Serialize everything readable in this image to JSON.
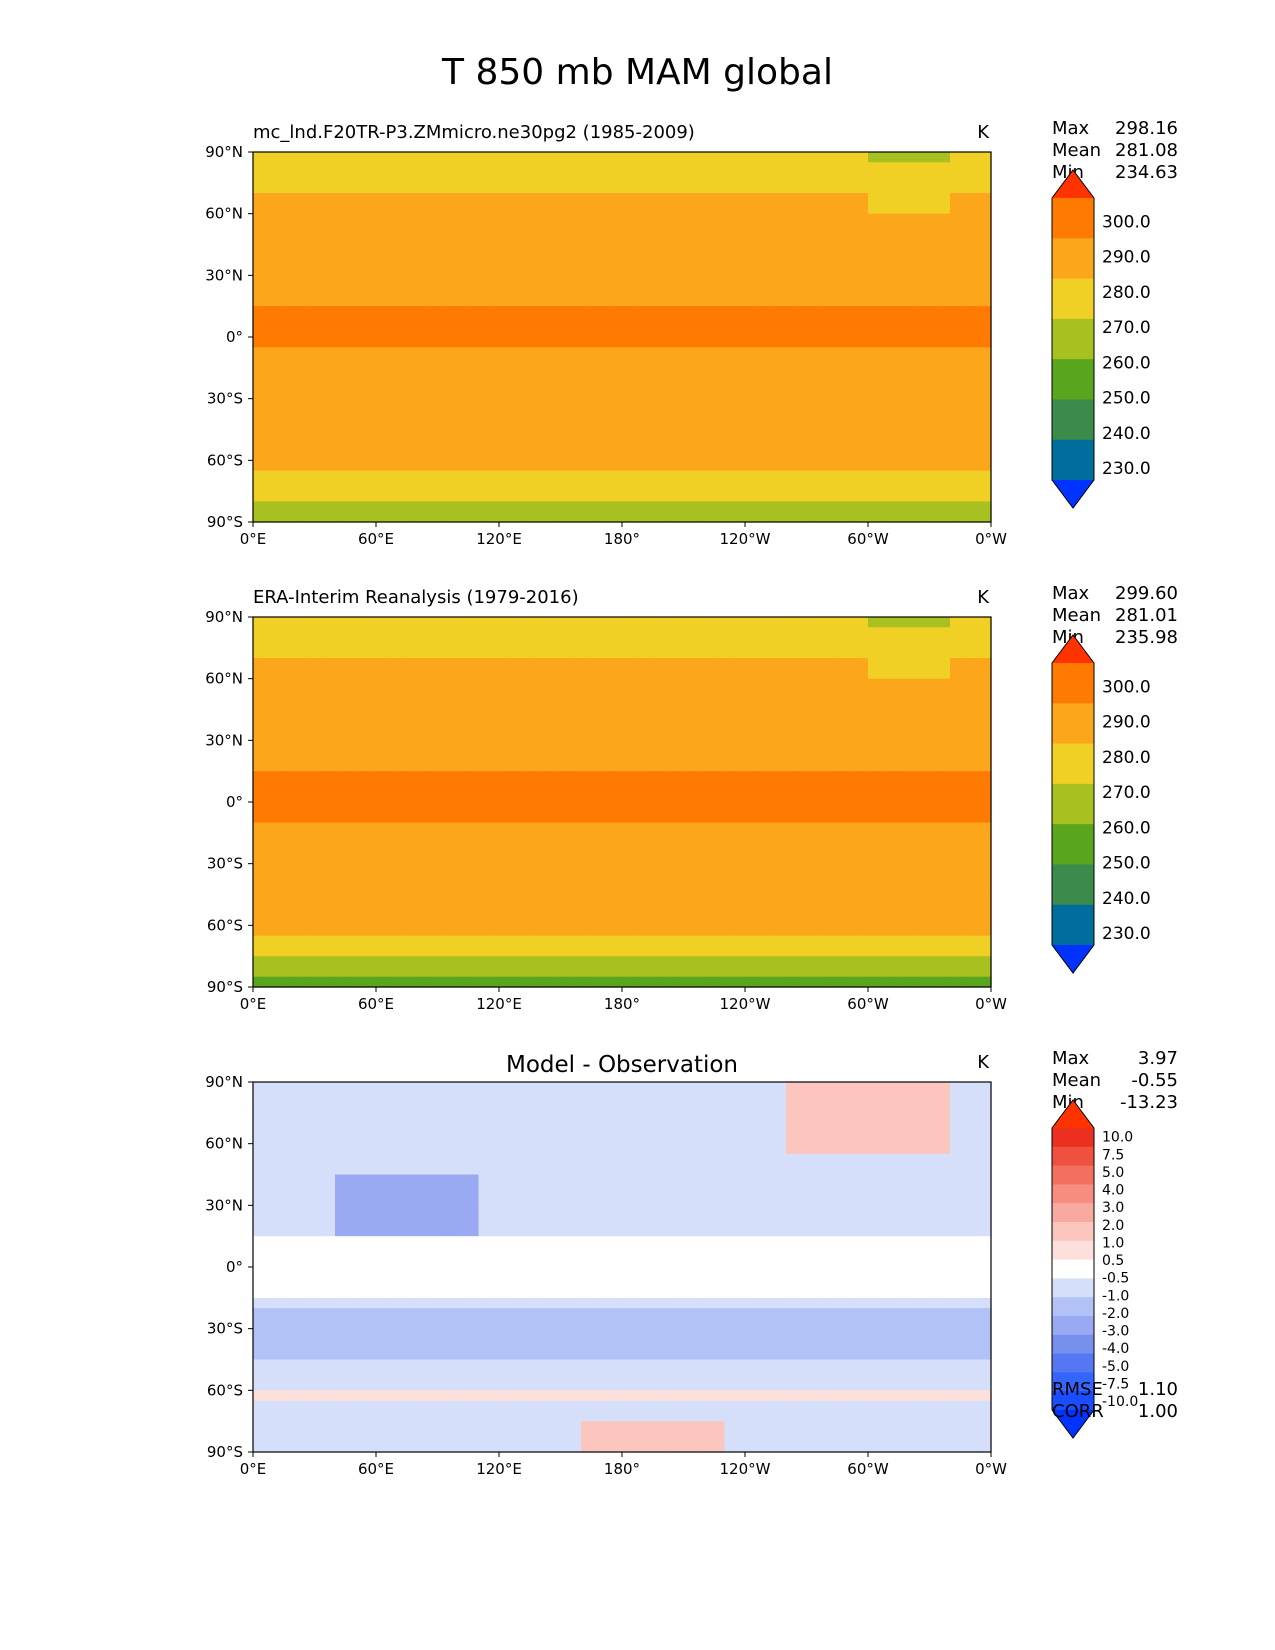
{
  "figure": {
    "title": "T 850 mb MAM global"
  },
  "chart_data": [
    {
      "type": "heatmap",
      "title": "mc_lnd.F20TR-P3.ZMmicro.ne30pg2 (1985-2009)",
      "title_align": "left",
      "units": "K",
      "stats": [
        {
          "label": "Max",
          "value": "298.16"
        },
        {
          "label": "Mean",
          "value": "281.08"
        },
        {
          "label": "Min",
          "value": "234.63"
        }
      ],
      "xlim": [
        0,
        360
      ],
      "ylim": [
        -90,
        90
      ],
      "x_ticks": [
        "0°E",
        "60°E",
        "120°E",
        "180°",
        "120°W",
        "60°W",
        "0°W"
      ],
      "y_ticks": [
        "90°N",
        "60°N",
        "30°N",
        "0°",
        "30°S",
        "60°S",
        "90°S"
      ],
      "colorbar": {
        "levels": [
          "230.0",
          "240.0",
          "250.0",
          "260.0",
          "270.0",
          "280.0",
          "290.0",
          "300.0"
        ],
        "colors": [
          "#0033ff",
          "#006e9c",
          "#3b8c4c",
          "#5aa51e",
          "#a8c020",
          "#f1d025",
          "#fba61b",
          "#ff7a00",
          "#ff3300"
        ]
      },
      "field": "model"
    },
    {
      "type": "heatmap",
      "title": "ERA-Interim Reanalysis (1979-2016)",
      "title_align": "left",
      "units": "K",
      "stats": [
        {
          "label": "Max",
          "value": "299.60"
        },
        {
          "label": "Mean",
          "value": "281.01"
        },
        {
          "label": "Min",
          "value": "235.98"
        }
      ],
      "xlim": [
        0,
        360
      ],
      "ylim": [
        -90,
        90
      ],
      "x_ticks": [
        "0°E",
        "60°E",
        "120°E",
        "180°",
        "120°W",
        "60°W",
        "0°W"
      ],
      "y_ticks": [
        "90°N",
        "60°N",
        "30°N",
        "0°",
        "30°S",
        "60°S",
        "90°S"
      ],
      "colorbar": {
        "levels": [
          "230.0",
          "240.0",
          "250.0",
          "260.0",
          "270.0",
          "280.0",
          "290.0",
          "300.0"
        ],
        "colors": [
          "#0033ff",
          "#006e9c",
          "#3b8c4c",
          "#5aa51e",
          "#a8c020",
          "#f1d025",
          "#fba61b",
          "#ff7a00",
          "#ff3300"
        ]
      },
      "field": "obs"
    },
    {
      "type": "heatmap",
      "title": "Model - Observation",
      "title_align": "center",
      "units": "K",
      "stats": [
        {
          "label": "Max",
          "value": "3.97"
        },
        {
          "label": "Mean",
          "value": "-0.55"
        },
        {
          "label": "Min",
          "value": "-13.23"
        }
      ],
      "extra_stats": [
        {
          "label": "RMSE",
          "value": "1.10"
        },
        {
          "label": "CORR",
          "value": "1.00"
        }
      ],
      "xlim": [
        0,
        360
      ],
      "ylim": [
        -90,
        90
      ],
      "x_ticks": [
        "0°E",
        "60°E",
        "120°E",
        "180°",
        "120°W",
        "60°W",
        "0°W"
      ],
      "y_ticks": [
        "90°N",
        "60°N",
        "30°N",
        "0°",
        "30°S",
        "60°S",
        "90°S"
      ],
      "colorbar": {
        "levels": [
          "-10.0",
          "-7.5",
          "-5.0",
          "-4.0",
          "-3.0",
          "-2.0",
          "-1.0",
          "-0.5",
          "0.5",
          "1.0",
          "2.0",
          "3.0",
          "4.0",
          "5.0",
          "7.5",
          "10.0"
        ],
        "colors": [
          "#0033ff",
          "#1a4dff",
          "#3366ff",
          "#5577f2",
          "#7790ee",
          "#99aaf2",
          "#b3c2f6",
          "#d6dffa",
          "#ffffff",
          "#fde0dc",
          "#fbc6be",
          "#f9aaa0",
          "#f68d80",
          "#f37060",
          "#ef5040",
          "#ec3020",
          "#ff3300"
        ]
      },
      "field": "diff"
    }
  ]
}
